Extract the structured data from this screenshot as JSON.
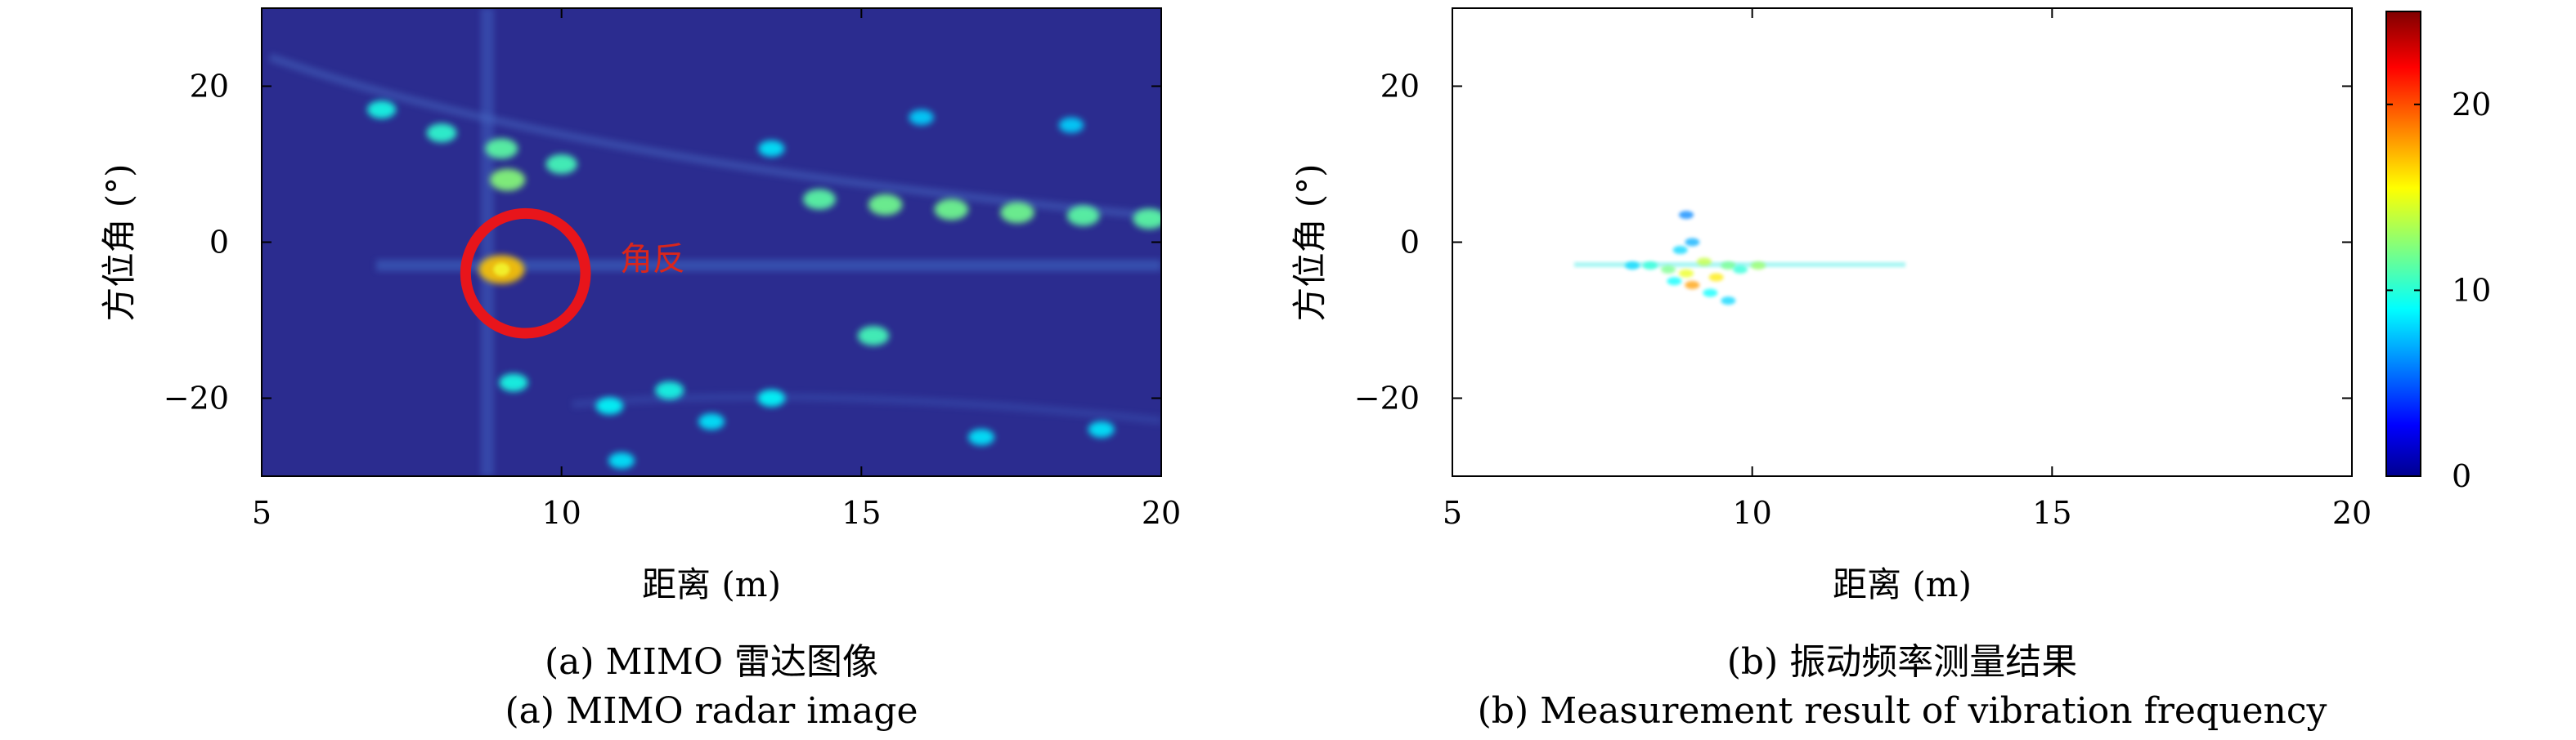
{
  "chart_data": [
    {
      "type": "heatmap",
      "caption_cn": "(a) MIMO 雷达图像",
      "caption_en": "(a) MIMO radar image",
      "xlabel": "距离 (m)",
      "ylabel": "方位角 (°)",
      "xlim": [
        5,
        20
      ],
      "ylim": [
        -30,
        30
      ],
      "xticks": [
        5,
        10,
        15,
        20
      ],
      "yticks": [
        20,
        0,
        -20
      ],
      "background_color": "#2b2c8f",
      "annotation": {
        "text": "角反",
        "x": 9.4,
        "y": -4,
        "radius_m": 1.0,
        "color": "#e8151b"
      },
      "points": [
        {
          "x": 9.0,
          "y": -3.5,
          "v": 0.95
        },
        {
          "x": 9.1,
          "y": 8,
          "v": 0.55
        },
        {
          "x": 9.0,
          "y": 12,
          "v": 0.45
        },
        {
          "x": 10.0,
          "y": 10,
          "v": 0.4
        },
        {
          "x": 8.0,
          "y": 14,
          "v": 0.35
        },
        {
          "x": 7.0,
          "y": 17,
          "v": 0.3
        },
        {
          "x": 14.3,
          "y": 5.5,
          "v": 0.45
        },
        {
          "x": 15.4,
          "y": 4.8,
          "v": 0.5
        },
        {
          "x": 16.5,
          "y": 4.2,
          "v": 0.5
        },
        {
          "x": 17.6,
          "y": 3.8,
          "v": 0.5
        },
        {
          "x": 18.7,
          "y": 3.4,
          "v": 0.45
        },
        {
          "x": 19.8,
          "y": 3.0,
          "v": 0.45
        },
        {
          "x": 15.2,
          "y": -12,
          "v": 0.4
        },
        {
          "x": 9.2,
          "y": -18,
          "v": 0.3
        },
        {
          "x": 11.8,
          "y": -19,
          "v": 0.3
        },
        {
          "x": 13.5,
          "y": -20,
          "v": 0.25
        },
        {
          "x": 10.8,
          "y": -21,
          "v": 0.25
        },
        {
          "x": 12.5,
          "y": -23,
          "v": 0.2
        },
        {
          "x": 17.0,
          "y": -25,
          "v": 0.2
        },
        {
          "x": 19.0,
          "y": -24,
          "v": 0.2
        },
        {
          "x": 11.0,
          "y": -28,
          "v": 0.2
        },
        {
          "x": 13.5,
          "y": 12,
          "v": 0.2
        },
        {
          "x": 16.0,
          "y": 16,
          "v": 0.15
        },
        {
          "x": 18.5,
          "y": 15,
          "v": 0.15
        }
      ]
    },
    {
      "type": "heatmap",
      "caption_cn": "(b) 振动频率测量结果",
      "caption_en": "(b) Measurement result of vibration frequency",
      "xlabel": "距离 (m)",
      "ylabel": "方位角 (°)",
      "xlim": [
        5,
        20
      ],
      "ylim": [
        -30,
        30
      ],
      "xticks": [
        5,
        10,
        15,
        20
      ],
      "yticks": [
        20,
        0,
        -20
      ],
      "colorbar": {
        "range": [
          0,
          25
        ],
        "ticks": [
          20,
          10,
          0
        ]
      },
      "points": [
        {
          "x": 8.0,
          "y": -3,
          "v": 8
        },
        {
          "x": 8.3,
          "y": -3,
          "v": 10
        },
        {
          "x": 8.6,
          "y": -3.5,
          "v": 12
        },
        {
          "x": 8.9,
          "y": -4,
          "v": 15
        },
        {
          "x": 9.0,
          "y": -5.5,
          "v": 18
        },
        {
          "x": 9.2,
          "y": -2.5,
          "v": 14
        },
        {
          "x": 9.4,
          "y": -4.5,
          "v": 16
        },
        {
          "x": 9.6,
          "y": -3,
          "v": 12
        },
        {
          "x": 9.8,
          "y": -3.5,
          "v": 10
        },
        {
          "x": 10.1,
          "y": -3,
          "v": 13
        },
        {
          "x": 8.8,
          "y": -1,
          "v": 8
        },
        {
          "x": 9.0,
          "y": 0,
          "v": 7
        },
        {
          "x": 8.9,
          "y": 3.5,
          "v": 6
        },
        {
          "x": 9.3,
          "y": -6.5,
          "v": 9
        },
        {
          "x": 9.6,
          "y": -7.5,
          "v": 8
        },
        {
          "x": 8.7,
          "y": -5,
          "v": 9
        }
      ]
    }
  ],
  "colors": {
    "jet_0": "#00008f",
    "jet_1": "#0000ff",
    "jet_2": "#00ffff",
    "jet_3": "#ffff00",
    "jet_4": "#ff0000",
    "jet_5": "#800000"
  }
}
